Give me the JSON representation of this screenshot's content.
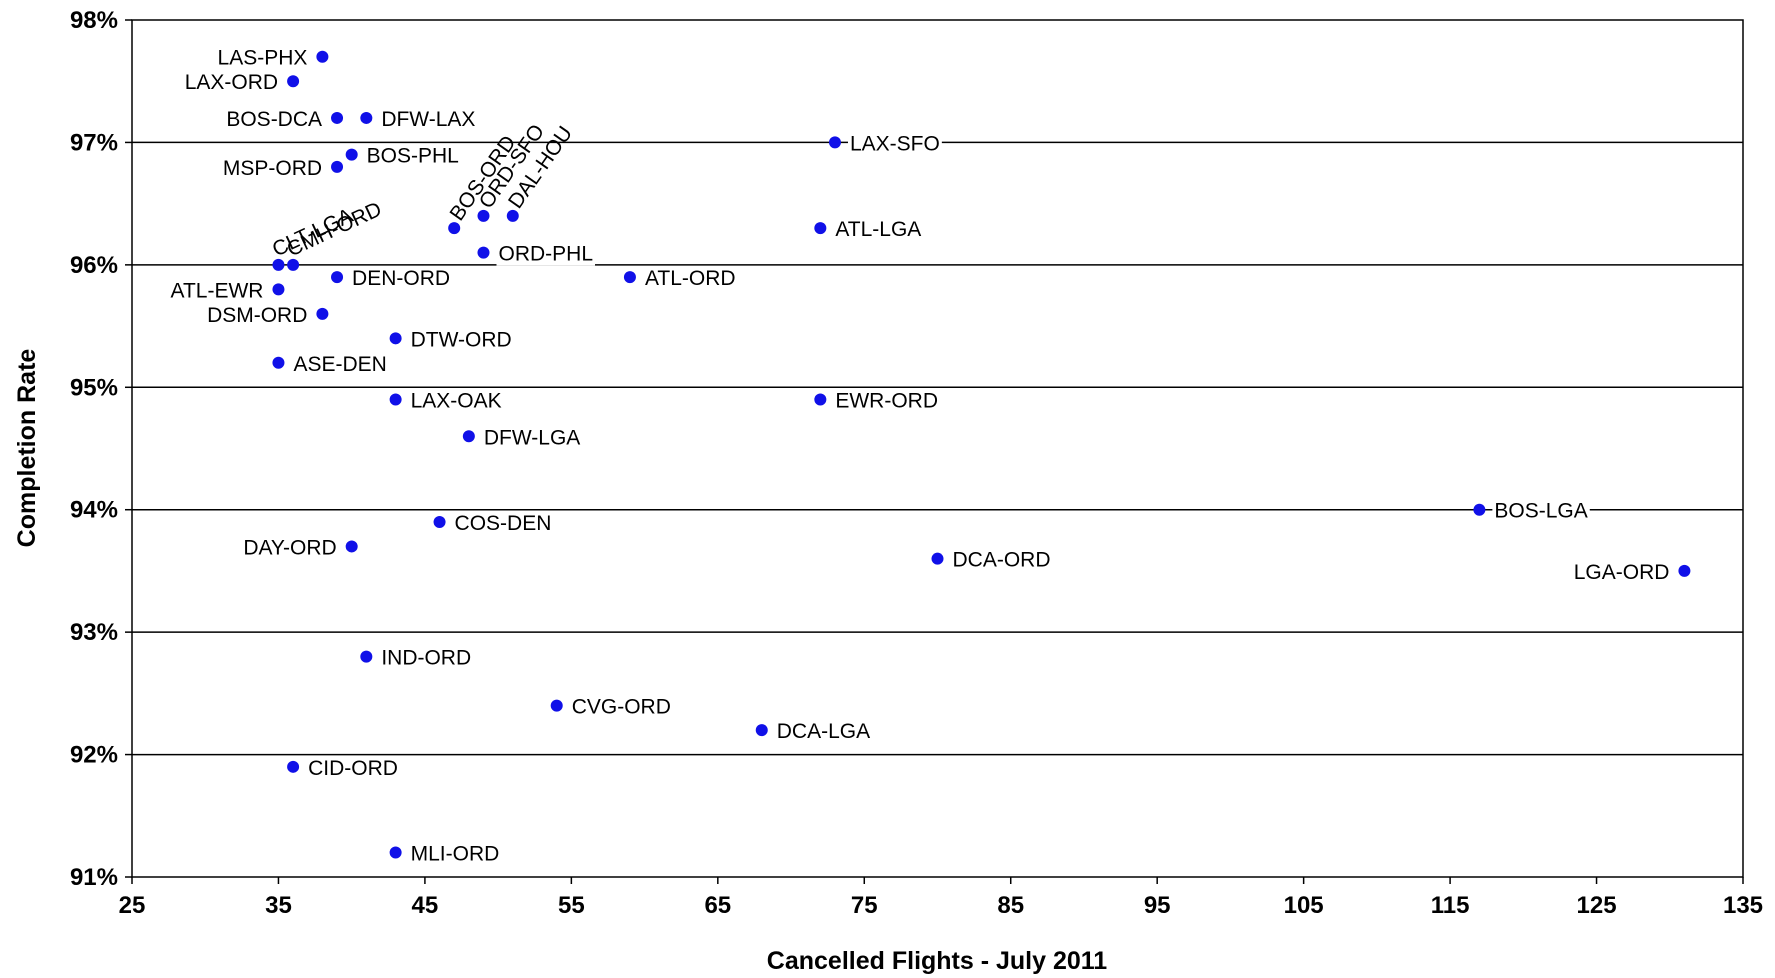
{
  "chart_data": {
    "type": "scatter",
    "xlabel": "Cancelled Flights - July 2011",
    "ylabel": "Completion Rate",
    "xlim": [
      25,
      135
    ],
    "ylim": [
      91,
      98
    ],
    "x_ticks": [
      25,
      35,
      45,
      55,
      65,
      75,
      85,
      95,
      105,
      115,
      125,
      135
    ],
    "y_ticks": [
      91,
      92,
      93,
      94,
      95,
      96,
      97,
      98
    ],
    "y_tick_labels": [
      "91%",
      "92%",
      "93%",
      "94%",
      "95%",
      "96%",
      "97%",
      "98%"
    ],
    "grid": "horizontal",
    "legend": "none",
    "marker_color": "#1010e8",
    "points": [
      {
        "label": "LAS-PHX",
        "x": 38,
        "y": 97.7,
        "anchor": "left"
      },
      {
        "label": "LAX-ORD",
        "x": 36,
        "y": 97.5,
        "anchor": "left"
      },
      {
        "label": "BOS-DCA",
        "x": 39,
        "y": 97.2,
        "anchor": "left"
      },
      {
        "label": "DFW-LAX",
        "x": 41,
        "y": 97.2,
        "anchor": "right"
      },
      {
        "label": "BOS-PHL",
        "x": 40,
        "y": 96.9,
        "anchor": "right"
      },
      {
        "label": "MSP-ORD",
        "x": 39,
        "y": 96.8,
        "anchor": "left"
      },
      {
        "label": "LAX-SFO",
        "x": 73,
        "y": 97.0,
        "anchor": "right"
      },
      {
        "label": "BOS-ORD",
        "x": 47,
        "y": 96.3,
        "anchor": "rot"
      },
      {
        "label": "ORD-SFO",
        "x": 49,
        "y": 96.4,
        "anchor": "rot"
      },
      {
        "label": "DAL-HOU",
        "x": 51,
        "y": 96.4,
        "anchor": "rot"
      },
      {
        "label": "ATL-LGA",
        "x": 72,
        "y": 96.3,
        "anchor": "right"
      },
      {
        "label": "CLT-LGA",
        "x": 35,
        "y": 96.0,
        "anchor": "rot-low"
      },
      {
        "label": "CMH-ORD",
        "x": 36,
        "y": 96.0,
        "anchor": "rot-low"
      },
      {
        "label": "ORD-PHL",
        "x": 49,
        "y": 96.1,
        "anchor": "right"
      },
      {
        "label": "DEN-ORD",
        "x": 39,
        "y": 95.9,
        "anchor": "right"
      },
      {
        "label": "ATL-ORD",
        "x": 59,
        "y": 95.9,
        "anchor": "right"
      },
      {
        "label": "ATL-EWR",
        "x": 35,
        "y": 95.8,
        "anchor": "left"
      },
      {
        "label": "DSM-ORD",
        "x": 38,
        "y": 95.6,
        "anchor": "left"
      },
      {
        "label": "DTW-ORD",
        "x": 43,
        "y": 95.4,
        "anchor": "right"
      },
      {
        "label": "ASE-DEN",
        "x": 35,
        "y": 95.2,
        "anchor": "right"
      },
      {
        "label": "LAX-OAK",
        "x": 43,
        "y": 94.9,
        "anchor": "right"
      },
      {
        "label": "EWR-ORD",
        "x": 72,
        "y": 94.9,
        "anchor": "right"
      },
      {
        "label": "DFW-LGA",
        "x": 48,
        "y": 94.6,
        "anchor": "right"
      },
      {
        "label": "BOS-LGA",
        "x": 117,
        "y": 94.0,
        "anchor": "right"
      },
      {
        "label": "COS-DEN",
        "x": 46,
        "y": 93.9,
        "anchor": "right"
      },
      {
        "label": "DAY-ORD",
        "x": 40,
        "y": 93.7,
        "anchor": "left"
      },
      {
        "label": "DCA-ORD",
        "x": 80,
        "y": 93.6,
        "anchor": "right"
      },
      {
        "label": "LGA-ORD",
        "x": 131,
        "y": 93.5,
        "anchor": "left"
      },
      {
        "label": "IND-ORD",
        "x": 41,
        "y": 92.8,
        "anchor": "right"
      },
      {
        "label": "CVG-ORD",
        "x": 54,
        "y": 92.4,
        "anchor": "right"
      },
      {
        "label": "DCA-LGA",
        "x": 68,
        "y": 92.2,
        "anchor": "right"
      },
      {
        "label": "CID-ORD",
        "x": 36,
        "y": 91.9,
        "anchor": "right"
      },
      {
        "label": "MLI-ORD",
        "x": 43,
        "y": 91.2,
        "anchor": "right"
      }
    ]
  }
}
